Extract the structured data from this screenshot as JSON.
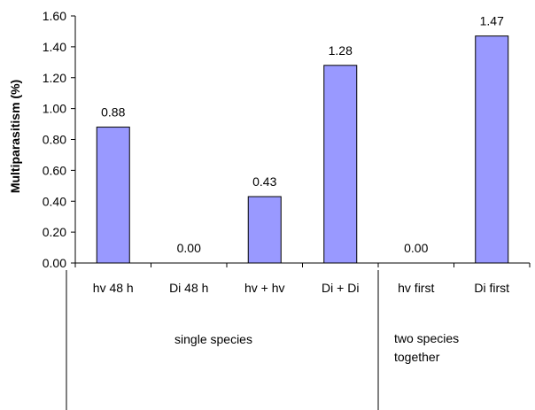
{
  "chart_data": {
    "type": "bar",
    "title": "",
    "xlabel": "",
    "ylabel": "Multiparasitism (%)",
    "ylim": [
      0,
      1.6
    ],
    "yticks": [
      "0.00",
      "0.20",
      "0.40",
      "0.60",
      "0.80",
      "1.00",
      "1.20",
      "1.40",
      "1.60"
    ],
    "categories": [
      "hv 48 h",
      "Di 48 h",
      "hv + hv",
      "Di + Di",
      "hv first",
      "Di first"
    ],
    "values": [
      0.88,
      0.0,
      0.43,
      1.28,
      0.0,
      1.47
    ],
    "data_labels": [
      "0.88",
      "0.00",
      "0.43",
      "1.28",
      "0.00",
      "1.47"
    ],
    "groups": [
      {
        "label": "single species",
        "categories": [
          "hv 48 h",
          "Di 48 h",
          "hv + hv",
          "Di + Di"
        ]
      },
      {
        "label": "two species together",
        "categories": [
          "hv first",
          "Di first"
        ]
      }
    ],
    "bar_color": "#9999ff",
    "bar_edge_color": "#000000",
    "grid": false,
    "legend": "none"
  }
}
